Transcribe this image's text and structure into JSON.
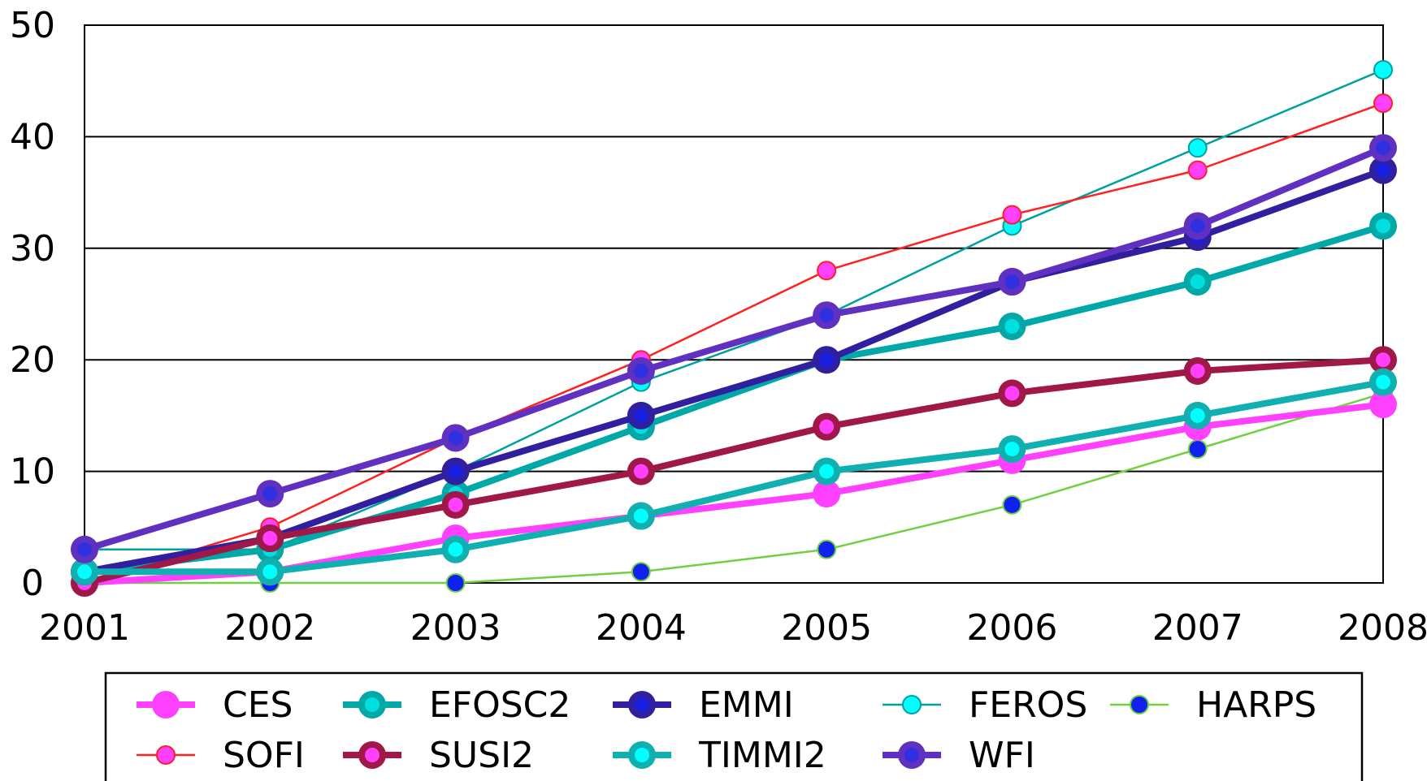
{
  "chart_data": {
    "type": "line",
    "title": "",
    "xlabel": "",
    "ylabel": "",
    "categories": [
      "2001",
      "2002",
      "2003",
      "2004",
      "2005",
      "2006",
      "2007",
      "2008"
    ],
    "yticks": [
      "0",
      "10",
      "20",
      "30",
      "40",
      "50"
    ],
    "ylim": [
      0,
      50
    ],
    "grid": "horizontal",
    "legend_position": "bottom",
    "series": [
      {
        "name": "CES",
        "color": "#ff40ff",
        "marker": "#ff40ff",
        "weight": "thick",
        "values": [
          0,
          1,
          4,
          6,
          8,
          11,
          14,
          16
        ]
      },
      {
        "name": "EFOSC2",
        "color": "#00a8a8",
        "marker": "#00e0e0",
        "weight": "thick",
        "values": [
          1,
          3,
          8,
          14,
          20,
          23,
          27,
          32
        ]
      },
      {
        "name": "EMMI",
        "color": "#3020a0",
        "marker": "#1a20e0",
        "weight": "thick",
        "values": [
          1,
          4,
          10,
          15,
          20,
          27,
          31,
          37
        ]
      },
      {
        "name": "FEROS",
        "color": "#00a0a0",
        "marker": "#00ffff",
        "weight": "thin",
        "values": [
          3,
          3,
          10,
          18,
          24,
          32,
          39,
          46
        ]
      },
      {
        "name": "HARPS",
        "color": "#70d040",
        "marker": "#1020f0",
        "weight": "thin",
        "values": [
          0,
          0,
          0,
          1,
          3,
          7,
          12,
          17
        ]
      },
      {
        "name": "SOFI",
        "color": "#ff2020",
        "marker": "#ff40ff",
        "weight": "thin",
        "values": [
          0,
          5,
          13,
          20,
          28,
          33,
          37,
          43
        ]
      },
      {
        "name": "SUSI2",
        "color": "#a01848",
        "marker": "#ff40ff",
        "weight": "thick",
        "values": [
          0,
          4,
          7,
          10,
          14,
          17,
          19,
          20
        ]
      },
      {
        "name": "TIMMI2",
        "color": "#10b0b0",
        "marker": "#00ffff",
        "weight": "thick",
        "values": [
          1,
          1,
          3,
          6,
          10,
          12,
          15,
          18
        ]
      },
      {
        "name": "WFI",
        "color": "#6030c0",
        "marker": "#3030e0",
        "weight": "thick",
        "values": [
          3,
          8,
          13,
          19,
          24,
          27,
          32,
          39
        ]
      }
    ]
  }
}
